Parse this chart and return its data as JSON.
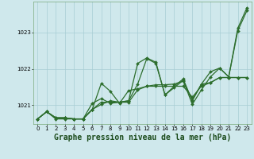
{
  "background_color": "#cfe8ec",
  "grid_color": "#a8cdd4",
  "line_color": "#2d6e2d",
  "title": "Graphe pression niveau de la mer (hPa)",
  "xlim": [
    -0.5,
    23.5
  ],
  "ylim": [
    1020.48,
    1023.85
  ],
  "yticks": [
    1021,
    1022,
    1023
  ],
  "xticks": [
    0,
    1,
    2,
    3,
    4,
    5,
    6,
    7,
    8,
    9,
    10,
    11,
    12,
    13,
    14,
    15,
    16,
    17,
    18,
    19,
    20,
    21,
    22,
    23
  ],
  "series": [
    [
      1020.62,
      1020.82,
      1020.62,
      1020.62,
      1020.62,
      1020.62,
      1020.88,
      1021.6,
      1021.38,
      1021.05,
      1021.4,
      1021.45,
      1021.52,
      1021.56,
      1021.56,
      1021.58,
      1021.66,
      1021.14,
      1021.58,
      1021.62,
      1021.76,
      1021.76,
      1021.76,
      1021.76
    ],
    [
      1020.62,
      1020.82,
      1020.65,
      1020.65,
      1020.62,
      1020.62,
      1021.05,
      1021.18,
      1021.05,
      1021.08,
      1021.12,
      1022.15,
      1022.3,
      1022.18,
      1021.28,
      1021.52,
      1021.72,
      1021.12,
      1021.58,
      1021.92,
      1022.02,
      1021.78,
      1023.05,
      1023.6
    ],
    [
      1020.62,
      1020.82,
      1020.65,
      1020.65,
      1020.62,
      1020.62,
      1020.88,
      1021.08,
      1021.08,
      1021.08,
      1021.08,
      1021.42,
      1021.52,
      1021.52,
      1021.52,
      1021.52,
      1021.52,
      1021.22,
      1021.52,
      1021.62,
      1021.76,
      1021.76,
      1021.76,
      1021.76
    ],
    [
      1020.62,
      1020.82,
      1020.65,
      1020.65,
      1020.62,
      1020.62,
      1020.88,
      1021.02,
      1021.12,
      1021.08,
      1021.12,
      1021.58,
      1022.28,
      1022.15,
      1021.28,
      1021.48,
      1021.68,
      1021.02,
      1021.42,
      1021.78,
      1022.02,
      1021.78,
      1023.12,
      1023.68
    ]
  ],
  "marker": "D",
  "marker_size": 2.0,
  "line_width": 0.9,
  "title_fontsize": 7.0,
  "tick_fontsize": 5.0,
  "ylabel_fontsize": 5.5
}
